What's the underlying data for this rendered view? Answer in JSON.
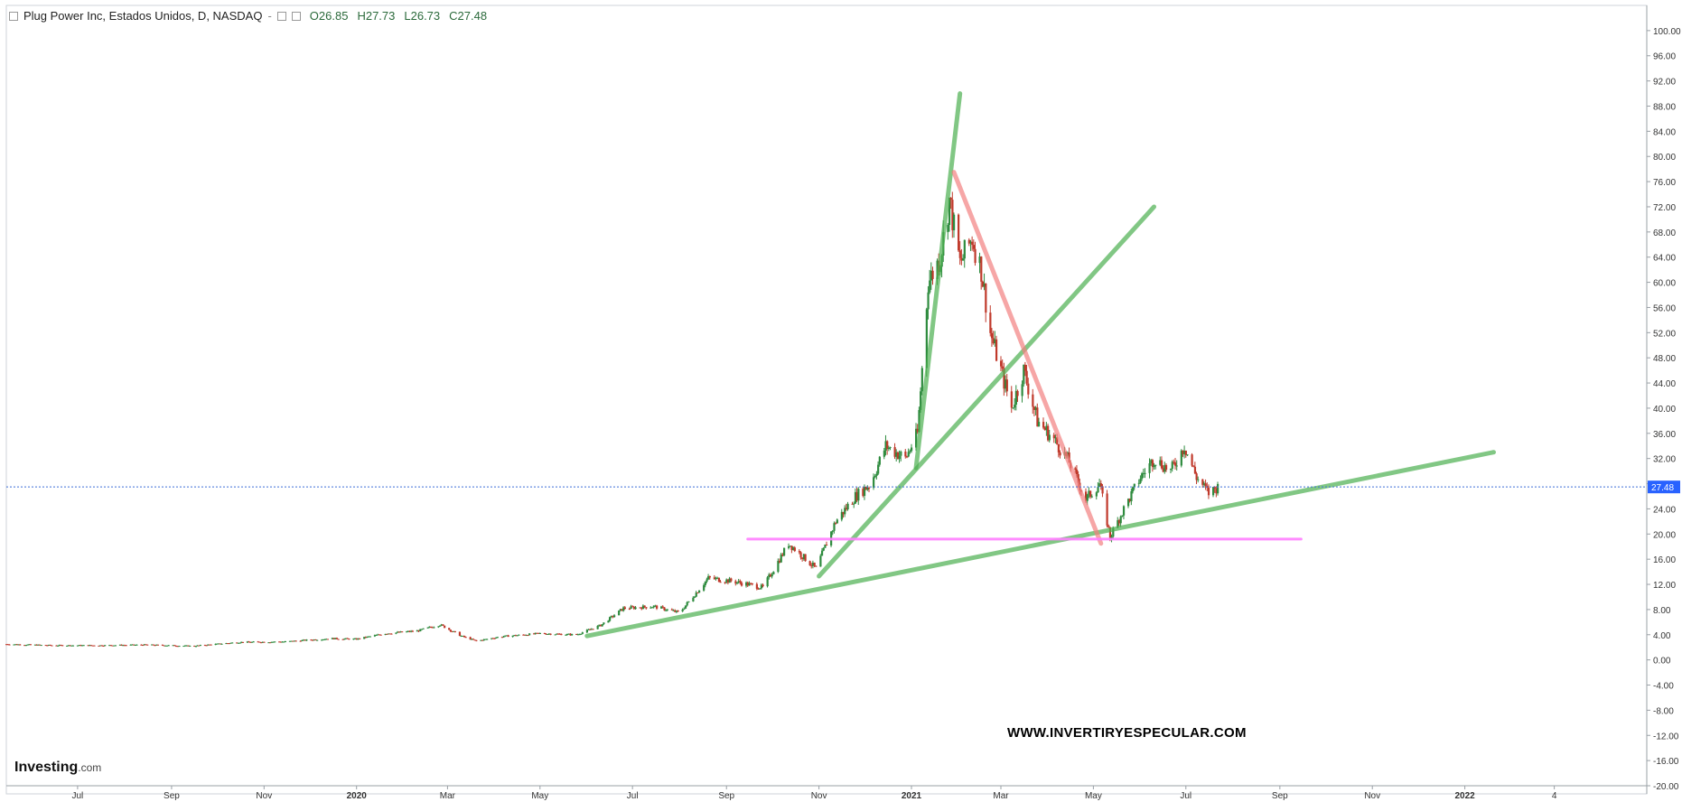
{
  "header": {
    "symbol": "Plug Power Inc, Estados Unidos, D, NASDAQ",
    "separator": "-",
    "open": "O26.85",
    "high": "H27.73",
    "low": "L26.73",
    "close": "C27.48"
  },
  "watermark": "WWW.INVERTIRYESPECULAR.COM",
  "logo": {
    "brand": "Investing",
    "domain": ".com"
  },
  "colors": {
    "up": "#2e8b3e",
    "down": "#c0392b",
    "trend_green": "#4caf50",
    "trend_red": "#f28080",
    "support_pink": "#ff80ff",
    "last_price_line": "#3f6fd8",
    "last_price_tag": "#2962ff"
  },
  "chart_data": {
    "type": "candlestick",
    "ylim": [
      -20,
      104
    ],
    "yticks": [
      -20,
      -16,
      -12,
      -8,
      -4,
      0,
      4,
      8,
      12,
      16,
      20,
      24,
      28,
      32,
      36,
      40,
      44,
      48,
      52,
      56,
      60,
      64,
      68,
      72,
      76,
      80,
      84,
      88,
      92,
      96,
      100
    ],
    "ytick_labels": [
      "-20.00",
      "-16.00",
      "-12.00",
      "-8.00",
      "-4.00",
      "0.00",
      "4.00",
      "8.00",
      "12.00",
      "16.00",
      "20.00",
      "24.00",
      "28.00",
      "32.00",
      "36.00",
      "40.00",
      "44.00",
      "48.00",
      "52.00",
      "56.00",
      "60.00",
      "64.00",
      "68.00",
      "72.00",
      "76.00",
      "80.00",
      "84.00",
      "88.00",
      "92.00",
      "96.00",
      "100.00"
    ],
    "xlim": [
      "2019-05-15",
      "2022-05-01"
    ],
    "xticks": [
      {
        "date": "2019-07-01",
        "label": "Jul",
        "bold": false
      },
      {
        "date": "2019-09-01",
        "label": "Sep",
        "bold": false
      },
      {
        "date": "2019-11-01",
        "label": "Nov",
        "bold": false
      },
      {
        "date": "2020-01-01",
        "label": "2020",
        "bold": true
      },
      {
        "date": "2020-03-01",
        "label": "Mar",
        "bold": false
      },
      {
        "date": "2020-05-01",
        "label": "May",
        "bold": false
      },
      {
        "date": "2020-07-01",
        "label": "Jul",
        "bold": false
      },
      {
        "date": "2020-09-01",
        "label": "Sep",
        "bold": false
      },
      {
        "date": "2020-11-01",
        "label": "Nov",
        "bold": false
      },
      {
        "date": "2021-01-01",
        "label": "2021",
        "bold": true
      },
      {
        "date": "2021-03-01",
        "label": "Mar",
        "bold": false
      },
      {
        "date": "2021-05-01",
        "label": "May",
        "bold": false
      },
      {
        "date": "2021-07-01",
        "label": "Jul",
        "bold": false
      },
      {
        "date": "2021-09-01",
        "label": "Sep",
        "bold": false
      },
      {
        "date": "2021-11-01",
        "label": "Nov",
        "bold": false
      },
      {
        "date": "2022-01-01",
        "label": "2022",
        "bold": true
      },
      {
        "date": "2022-03-01",
        "label": "4",
        "bold": false
      }
    ],
    "last_price": 27.48,
    "last_price_label": "27.48",
    "price_path": [
      [
        "2019-05-15",
        2.5
      ],
      [
        "2019-06-15",
        2.3
      ],
      [
        "2019-07-15",
        2.3
      ],
      [
        "2019-08-15",
        2.4
      ],
      [
        "2019-09-15",
        2.2
      ],
      [
        "2019-10-15",
        2.8
      ],
      [
        "2019-11-15",
        2.9
      ],
      [
        "2019-12-15",
        3.4
      ],
      [
        "2020-01-01",
        3.3
      ],
      [
        "2020-01-20",
        4.2
      ],
      [
        "2020-02-10",
        4.6
      ],
      [
        "2020-02-25",
        5.6
      ],
      [
        "2020-03-10",
        3.8
      ],
      [
        "2020-03-20",
        3.0
      ],
      [
        "2020-04-05",
        3.7
      ],
      [
        "2020-05-01",
        4.2
      ],
      [
        "2020-05-25",
        4.0
      ],
      [
        "2020-06-10",
        5.5
      ],
      [
        "2020-06-25",
        8.2
      ],
      [
        "2020-07-15",
        8.5
      ],
      [
        "2020-08-01",
        7.5
      ],
      [
        "2020-08-20",
        13.0
      ],
      [
        "2020-09-05",
        12.5
      ],
      [
        "2020-09-25",
        11.5
      ],
      [
        "2020-10-12",
        18.5
      ],
      [
        "2020-10-30",
        14.5
      ],
      [
        "2020-11-12",
        22.0
      ],
      [
        "2020-11-25",
        26.0
      ],
      [
        "2020-12-05",
        28.0
      ],
      [
        "2020-12-15",
        34.0
      ],
      [
        "2020-12-28",
        32.0
      ],
      [
        "2021-01-05",
        36.0
      ],
      [
        "2021-01-12",
        60.0
      ],
      [
        "2021-01-20",
        64.0
      ],
      [
        "2021-01-26",
        73.0
      ],
      [
        "2021-02-02",
        63.0
      ],
      [
        "2021-02-10",
        67.0
      ],
      [
        "2021-02-16",
        62.0
      ],
      [
        "2021-02-22",
        52.0
      ],
      [
        "2021-03-01",
        46.0
      ],
      [
        "2021-03-08",
        40.0
      ],
      [
        "2021-03-16",
        46.0
      ],
      [
        "2021-03-25",
        38.0
      ],
      [
        "2021-04-05",
        35.0
      ],
      [
        "2021-04-15",
        31.5
      ],
      [
        "2021-04-26",
        25.5
      ],
      [
        "2021-05-05",
        28.0
      ],
      [
        "2021-05-12",
        19.5
      ],
      [
        "2021-05-20",
        23.5
      ],
      [
        "2021-06-01",
        29.0
      ],
      [
        "2021-06-10",
        32.0
      ],
      [
        "2021-06-21",
        30.0
      ],
      [
        "2021-06-30",
        34.0
      ],
      [
        "2021-07-08",
        29.0
      ],
      [
        "2021-07-16",
        26.5
      ],
      [
        "2021-07-22",
        27.48
      ]
    ],
    "annotations": [
      {
        "type": "trendline",
        "color": "green",
        "from": [
          "2020-06-01",
          3.8
        ],
        "to": [
          "2022-01-20",
          33.0
        ]
      },
      {
        "type": "trendline",
        "color": "green",
        "from": [
          "2020-11-01",
          13.3
        ],
        "to": [
          "2021-06-10",
          72.0
        ]
      },
      {
        "type": "trendline",
        "color": "green",
        "from": [
          "2021-01-04",
          30.5
        ],
        "to": [
          "2021-02-02",
          90.0
        ]
      },
      {
        "type": "trendline",
        "color": "red",
        "from": [
          "2021-01-29",
          77.5
        ],
        "to": [
          "2021-05-06",
          18.5
        ]
      },
      {
        "type": "horizontal",
        "color": "pink",
        "from": [
          "2020-09-15",
          19.2
        ],
        "to": [
          "2021-09-15",
          19.2
        ]
      }
    ]
  }
}
